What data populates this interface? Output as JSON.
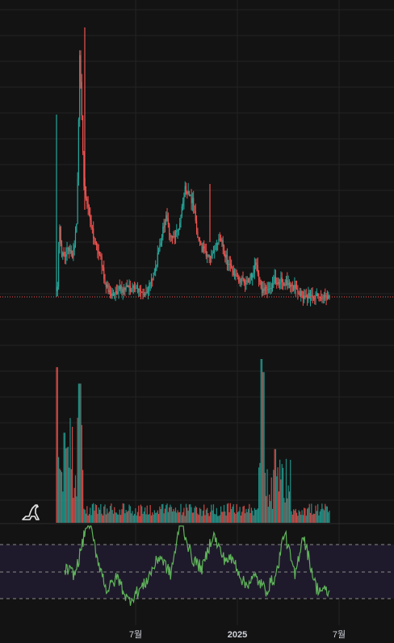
{
  "theme": {
    "background": "#131313",
    "grid": "#232323",
    "up": "#26a69a",
    "down": "#ef5350",
    "rsi_line": "#5fb35a",
    "rsi_band": "#1f1a2b",
    "rsi_guides": "#8a8a8a",
    "price_line": "#ef5350"
  },
  "icons": {
    "logo": "dinosaur-logo-icon"
  },
  "x_axis": {
    "ticks": [
      {
        "label": "7월",
        "bold": false
      },
      {
        "label": "2025",
        "bold": true
      },
      {
        "label": "7월",
        "bold": false
      }
    ]
  },
  "chart_data": [
    {
      "type": "candlestick",
      "title": "",
      "x": {
        "start": "2024-02",
        "end": "2025-07"
      },
      "price_series": [
        [
          0.0,
          0.96
        ],
        [
          0.005,
          0.96
        ],
        [
          0.01,
          0.72
        ],
        [
          0.02,
          0.85
        ],
        [
          0.04,
          0.82
        ],
        [
          0.06,
          0.85
        ],
        [
          0.075,
          0.7
        ],
        [
          0.085,
          0.1
        ],
        [
          0.1,
          0.58
        ],
        [
          0.12,
          0.7
        ],
        [
          0.14,
          0.8
        ],
        [
          0.16,
          0.84
        ],
        [
          0.18,
          0.95
        ],
        [
          0.2,
          0.98
        ],
        [
          0.25,
          0.96
        ],
        [
          0.29,
          0.97
        ],
        [
          0.33,
          0.98
        ],
        [
          0.36,
          0.9
        ],
        [
          0.38,
          0.8
        ],
        [
          0.4,
          0.7
        ],
        [
          0.42,
          0.78
        ],
        [
          0.45,
          0.75
        ],
        [
          0.47,
          0.6
        ],
        [
          0.5,
          0.65
        ],
        [
          0.52,
          0.8
        ],
        [
          0.56,
          0.85
        ],
        [
          0.6,
          0.78
        ],
        [
          0.63,
          0.88
        ],
        [
          0.67,
          0.93
        ],
        [
          0.7,
          0.94
        ],
        [
          0.72,
          0.9
        ],
        [
          0.73,
          0.86
        ],
        [
          0.75,
          0.98
        ],
        [
          0.78,
          0.96
        ],
        [
          0.8,
          0.93
        ],
        [
          0.83,
          0.94
        ],
        [
          0.86,
          0.95
        ],
        [
          0.9,
          0.99
        ],
        [
          1.0,
          1.0
        ]
      ],
      "volume_spikes": [
        [
          0.0,
          0.95
        ],
        [
          0.03,
          0.55
        ],
        [
          0.085,
          0.85
        ],
        [
          0.75,
          1.0
        ],
        [
          0.76,
          0.92
        ],
        [
          0.8,
          0.45
        ]
      ],
      "rsi_levels": [
        70,
        50,
        30
      ],
      "rsi_series": [
        [
          0.0,
          52
        ],
        [
          0.04,
          48
        ],
        [
          0.09,
          90
        ],
        [
          0.12,
          63
        ],
        [
          0.16,
          36
        ],
        [
          0.2,
          46
        ],
        [
          0.24,
          28
        ],
        [
          0.3,
          40
        ],
        [
          0.36,
          62
        ],
        [
          0.4,
          48
        ],
        [
          0.44,
          88
        ],
        [
          0.48,
          60
        ],
        [
          0.52,
          52
        ],
        [
          0.56,
          78
        ],
        [
          0.6,
          60
        ],
        [
          0.64,
          58
        ],
        [
          0.68,
          40
        ],
        [
          0.72,
          46
        ],
        [
          0.76,
          36
        ],
        [
          0.8,
          48
        ],
        [
          0.83,
          80
        ],
        [
          0.87,
          46
        ],
        [
          0.9,
          78
        ],
        [
          0.95,
          38
        ],
        [
          1.0,
          34
        ]
      ]
    }
  ]
}
